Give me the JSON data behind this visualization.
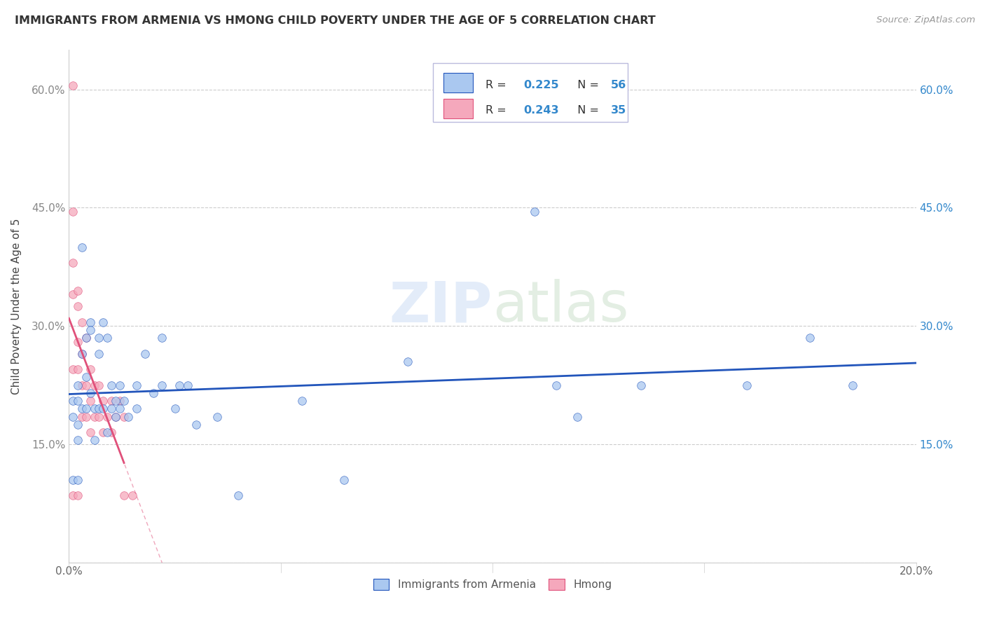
{
  "title": "IMMIGRANTS FROM ARMENIA VS HMONG CHILD POVERTY UNDER THE AGE OF 5 CORRELATION CHART",
  "source": "Source: ZipAtlas.com",
  "ylabel": "Child Poverty Under the Age of 5",
  "legend_label1": "Immigrants from Armenia",
  "legend_label2": "Hmong",
  "R1": 0.225,
  "N1": 56,
  "R2": 0.243,
  "N2": 35,
  "watermark_zip": "ZIP",
  "watermark_atlas": "atlas",
  "xlim": [
    0.0,
    0.2
  ],
  "ylim": [
    0.0,
    0.65
  ],
  "color_armenia": "#aac8f0",
  "color_hmong": "#f5a8bc",
  "line_color_armenia": "#2255bb",
  "line_color_hmong": "#e0507a",
  "scatter_alpha": 0.75,
  "scatter_size": 70,
  "armenia_x": [
    0.001,
    0.001,
    0.001,
    0.002,
    0.002,
    0.002,
    0.002,
    0.002,
    0.003,
    0.003,
    0.003,
    0.004,
    0.004,
    0.004,
    0.005,
    0.005,
    0.005,
    0.006,
    0.006,
    0.007,
    0.007,
    0.007,
    0.008,
    0.008,
    0.009,
    0.009,
    0.01,
    0.01,
    0.011,
    0.011,
    0.012,
    0.012,
    0.013,
    0.014,
    0.016,
    0.016,
    0.018,
    0.02,
    0.022,
    0.022,
    0.025,
    0.026,
    0.028,
    0.03,
    0.035,
    0.04,
    0.055,
    0.065,
    0.08,
    0.11,
    0.115,
    0.12,
    0.135,
    0.16,
    0.175,
    0.185
  ],
  "armenia_y": [
    0.205,
    0.185,
    0.105,
    0.225,
    0.205,
    0.175,
    0.155,
    0.105,
    0.4,
    0.265,
    0.195,
    0.285,
    0.235,
    0.195,
    0.305,
    0.295,
    0.215,
    0.195,
    0.155,
    0.285,
    0.265,
    0.195,
    0.305,
    0.195,
    0.285,
    0.165,
    0.225,
    0.195,
    0.205,
    0.185,
    0.225,
    0.195,
    0.205,
    0.185,
    0.225,
    0.195,
    0.265,
    0.215,
    0.285,
    0.225,
    0.195,
    0.225,
    0.225,
    0.175,
    0.185,
    0.085,
    0.205,
    0.105,
    0.255,
    0.445,
    0.225,
    0.185,
    0.225,
    0.225,
    0.285,
    0.225
  ],
  "hmong_x": [
    0.001,
    0.001,
    0.001,
    0.001,
    0.001,
    0.001,
    0.002,
    0.002,
    0.002,
    0.002,
    0.002,
    0.003,
    0.003,
    0.003,
    0.003,
    0.004,
    0.004,
    0.004,
    0.005,
    0.005,
    0.005,
    0.006,
    0.006,
    0.007,
    0.007,
    0.008,
    0.008,
    0.009,
    0.01,
    0.01,
    0.011,
    0.012,
    0.013,
    0.013,
    0.015
  ],
  "hmong_y": [
    0.605,
    0.445,
    0.38,
    0.34,
    0.245,
    0.085,
    0.345,
    0.325,
    0.28,
    0.245,
    0.085,
    0.305,
    0.265,
    0.225,
    0.185,
    0.285,
    0.225,
    0.185,
    0.245,
    0.205,
    0.165,
    0.225,
    0.185,
    0.225,
    0.185,
    0.205,
    0.165,
    0.185,
    0.205,
    0.165,
    0.185,
    0.205,
    0.185,
    0.085,
    0.085
  ]
}
